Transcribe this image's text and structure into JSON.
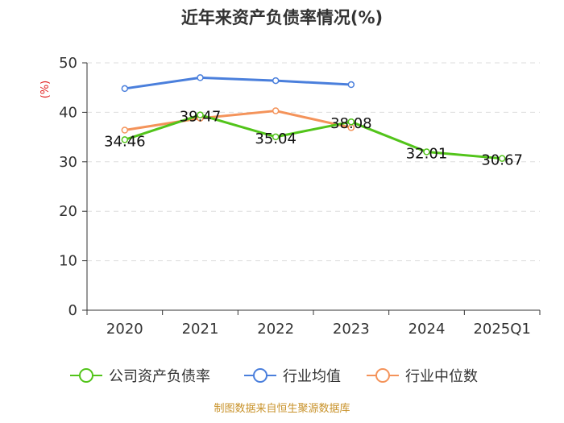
{
  "chart_data": {
    "type": "line",
    "title": "近年来资产负债率情况(%)",
    "ylabel": "(%)",
    "categories": [
      "2020",
      "2021",
      "2022",
      "2023",
      "2024",
      "2025Q1"
    ],
    "ylim": [
      0,
      50
    ],
    "yticks": [
      0,
      10,
      20,
      30,
      40,
      50
    ],
    "grid": true,
    "legend_position": "bottom",
    "series": [
      {
        "name": "公司资产负债率",
        "color": "#52c41a",
        "values": [
          34.46,
          39.47,
          35.04,
          38.08,
          32.01,
          30.67
        ],
        "labels": [
          "34.46",
          "39.47",
          "35.04",
          "38.08",
          "32.01",
          "30.67"
        ]
      },
      {
        "name": "行业均值",
        "color": "#4a7fdc",
        "values": [
          44.8,
          47.0,
          46.4,
          45.6,
          null,
          null
        ]
      },
      {
        "name": "行业中位数",
        "color": "#f4935a",
        "values": [
          36.4,
          38.8,
          40.3,
          36.9,
          null,
          null
        ]
      }
    ],
    "source": "制图数据来自恒生聚源数据库"
  }
}
